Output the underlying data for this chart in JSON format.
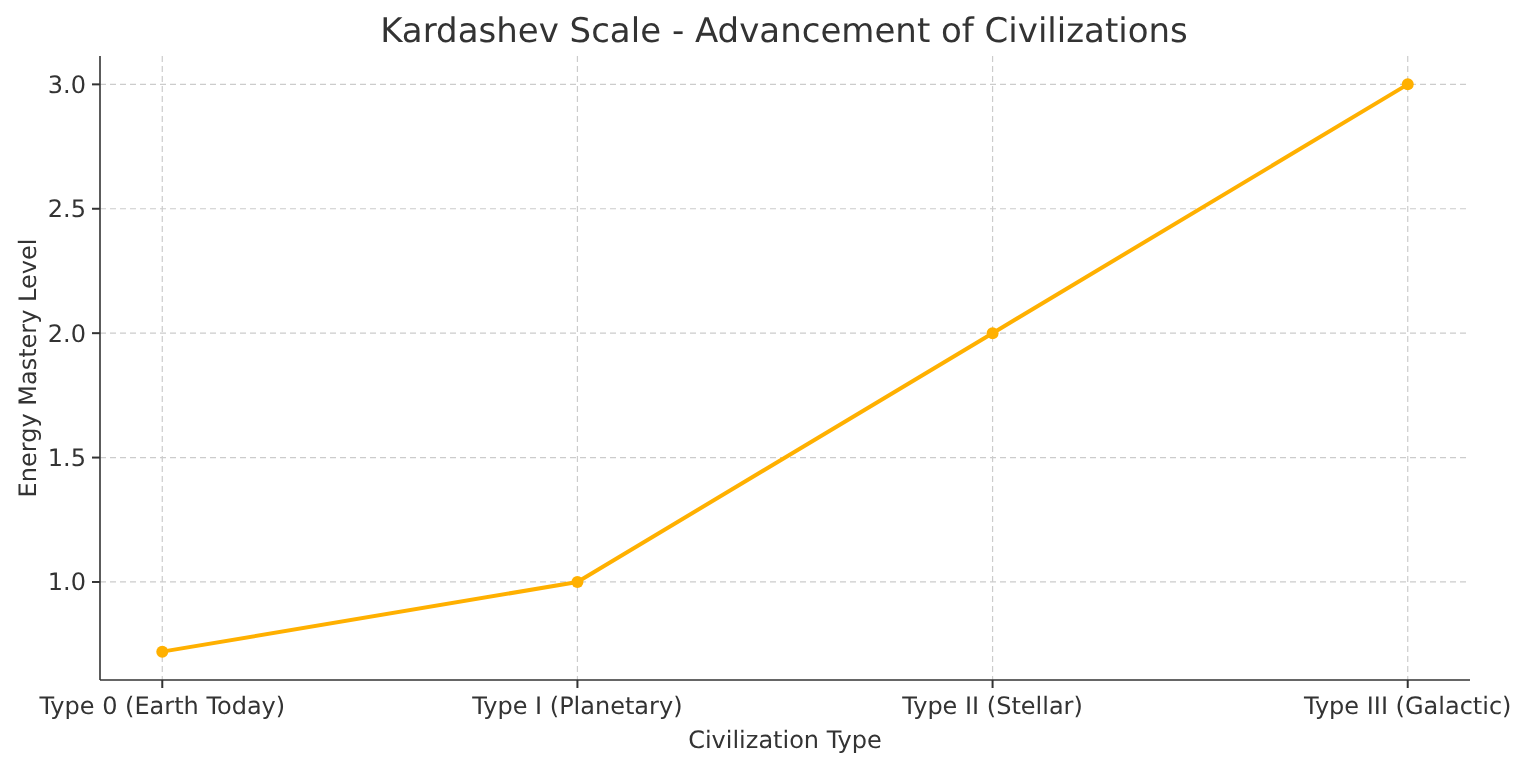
{
  "chart_data": {
    "type": "line",
    "title": "Kardashev Scale - Advancement of Civilizations",
    "xlabel": "Civilization Type",
    "ylabel": "Energy Mastery Level",
    "categories": [
      "Type 0 (Earth Today)",
      "Type I (Planetary)",
      "Type II (Stellar)",
      "Type III (Galactic)"
    ],
    "series": [
      {
        "color": "#ffb000",
        "values": [
          0.72,
          1.0,
          2.0,
          3.0
        ]
      }
    ],
    "ylim": [
      0.606,
      3.114
    ],
    "yticks": [
      {
        "value": 1.0,
        "label": "1.0"
      },
      {
        "value": 1.5,
        "label": "1.5"
      },
      {
        "value": 2.0,
        "label": "2.0"
      },
      {
        "value": 2.5,
        "label": "2.5"
      },
      {
        "value": 3.0,
        "label": "3.0"
      }
    ],
    "grid": true,
    "marker": "circle",
    "line_style": "solid"
  }
}
